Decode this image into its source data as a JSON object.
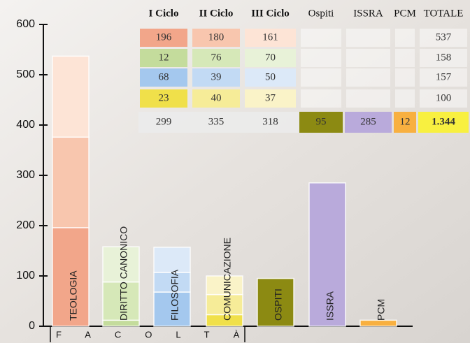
{
  "chart_data": {
    "type": "bar",
    "stacked": true,
    "x_label": "FACOLTÀ",
    "categories": [
      "TEOLOGIA",
      "DIRITTO CANONICO",
      "FILOSOFIA",
      "COMUNICAZIONE",
      "OSPITI",
      "ISSRA",
      "PCM"
    ],
    "series": [
      {
        "name": "I Ciclo",
        "values": [
          196,
          12,
          68,
          23,
          null,
          null,
          null
        ],
        "colors": [
          "#f2a68a",
          "#c4dc9c",
          "#a4c8ee",
          "#f0e04a"
        ]
      },
      {
        "name": "II Ciclo",
        "values": [
          180,
          76,
          39,
          40,
          null,
          null,
          null
        ],
        "colors": [
          "#f8c6ae",
          "#d6e8b8",
          "#c2daf4",
          "#f6ec98"
        ]
      },
      {
        "name": "III Ciclo",
        "values": [
          161,
          70,
          50,
          37,
          null,
          null,
          null
        ],
        "colors": [
          "#fde4d6",
          "#e8f2d8",
          "#dce9f8",
          "#faf3c8"
        ]
      },
      {
        "name": "Ospiti",
        "values": [
          null,
          null,
          null,
          null,
          95,
          null,
          null
        ],
        "colors": [
          null,
          null,
          null,
          null,
          "#8c8a12"
        ]
      },
      {
        "name": "ISSRA",
        "values": [
          null,
          null,
          null,
          null,
          null,
          285,
          null
        ],
        "colors": [
          null,
          null,
          null,
          null,
          null,
          "#b9aadb"
        ]
      },
      {
        "name": "PCM",
        "values": [
          null,
          null,
          null,
          null,
          null,
          null,
          12
        ],
        "colors": [
          null,
          null,
          null,
          null,
          null,
          null,
          "#f8b040"
        ]
      }
    ],
    "total_label": "TOTALE",
    "category_totals": [
      537,
      158,
      157,
      100
    ],
    "cycle_totals": [
      299,
      335,
      318
    ],
    "grand_total": {
      "value": 1344,
      "label": "1.344"
    },
    "ylim": [
      0,
      600
    ],
    "yticks": [
      0,
      100,
      200,
      300,
      400,
      500,
      600
    ],
    "grid": false
  }
}
